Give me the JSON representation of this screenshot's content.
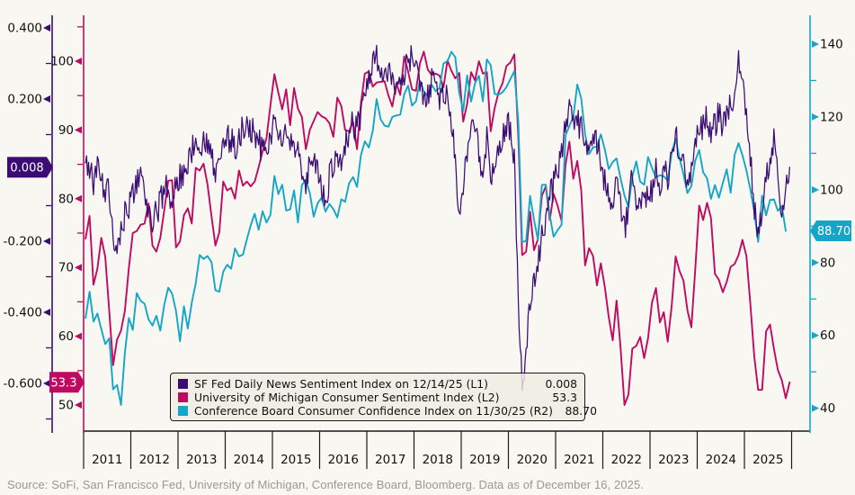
{
  "meta": {
    "source_line": "Source: SoFi, San Francisco Fed, University of Michigan, Conference Board, Bloomberg. Data as of December 16, 2025."
  },
  "colors": {
    "background": "#f9f7f1",
    "x_axis": "#1a1a1a",
    "sf_fed_purple": "#3a0c74",
    "michigan_magenta": "#be0a60",
    "conference_cyan": "#14a6c6",
    "badge_text": "#ffffff",
    "tick_label": "#111111"
  },
  "legend": {
    "items": [
      {
        "label": "SF Fed Daily News Sentiment Index on 12/14/25 (L1)",
        "value": "0.008",
        "swatch_color": "#3a0c74"
      },
      {
        "label": "University of Michigan Consumer Sentiment Index (L2)",
        "value": "53.3",
        "swatch_color": "#be0a60"
      },
      {
        "label": "Conference Board Consumer Confidence Index on 11/30/25 (R2)",
        "value": "88.70",
        "swatch_color": "#14a6c6"
      }
    ]
  },
  "axes": [
    {
      "id": "l1",
      "color": "#3a0c74",
      "ticks": [
        {
          "label": "0.400",
          "value": 0.4
        },
        {
          "label": "0.200",
          "value": 0.2
        },
        {
          "label": "-0.200",
          "value": -0.2
        },
        {
          "label": "-0.400",
          "value": -0.4
        },
        {
          "label": "-0.600",
          "value": -0.6
        }
      ],
      "minor": [
        0.3,
        0.1,
        -0.1,
        -0.3,
        -0.5,
        -0.7
      ],
      "badge": {
        "label": "0.008",
        "value": 0.008
      }
    },
    {
      "id": "l2",
      "color": "#be0a60",
      "ticks": [
        {
          "label": "100",
          "value": 100
        },
        {
          "label": "90",
          "value": 90
        },
        {
          "label": "80",
          "value": 80
        },
        {
          "label": "70",
          "value": 70
        },
        {
          "label": "60",
          "value": 60
        },
        {
          "label": "50",
          "value": 50
        }
      ],
      "minor": [
        105,
        95,
        85,
        75,
        65,
        55
      ],
      "badge": {
        "label": "53.3",
        "value": 53.3
      }
    },
    {
      "id": "r2",
      "color": "#14a6c6",
      "ticks": [
        {
          "label": "140",
          "value": 140
        },
        {
          "label": "120",
          "value": 120
        },
        {
          "label": "100",
          "value": 100
        },
        {
          "label": "80",
          "value": 80
        },
        {
          "label": "60",
          "value": 60
        },
        {
          "label": "40",
          "value": 40
        }
      ],
      "minor": [
        130,
        110,
        90,
        70,
        50
      ],
      "badge": {
        "label": "88.70",
        "value": 88.7
      }
    }
  ],
  "x_axis": {
    "years": [
      "2011",
      "2012",
      "2013",
      "2014",
      "2015",
      "2016",
      "2017",
      "2018",
      "2019",
      "2020",
      "2021",
      "2022",
      "2023",
      "2024",
      "2025"
    ]
  },
  "chart_data": {
    "type": "line",
    "x_unit": "month",
    "x_start": "2011-01",
    "x_end": "2025-12",
    "grid": false,
    "legend_position": "bottom-center-inside",
    "axis_ranges": {
      "L1": [
        -0.72,
        0.45
      ],
      "L2": [
        46,
        106
      ],
      "R2": [
        34,
        147
      ]
    },
    "series": [
      {
        "name": "SF Fed Daily News Sentiment Index on 12/14/25 (L1)",
        "axis": "L1",
        "color": "#3a0c74",
        "noise": 0.042,
        "width": 1.25,
        "last_value": 0.008,
        "values": [
          0.02,
          0.0,
          -0.03,
          0.01,
          -0.03,
          -0.06,
          -0.05,
          -0.18,
          -0.2,
          -0.16,
          -0.12,
          -0.1,
          -0.06,
          -0.03,
          -0.02,
          -0.06,
          -0.11,
          -0.14,
          -0.12,
          -0.09,
          -0.06,
          -0.05,
          -0.09,
          -0.05,
          -0.02,
          0.0,
          0.03,
          0.05,
          0.08,
          0.06,
          0.09,
          0.07,
          0.04,
          -0.03,
          0.04,
          0.08,
          0.1,
          0.08,
          0.06,
          0.1,
          0.12,
          0.13,
          0.12,
          0.1,
          0.09,
          0.04,
          0.08,
          0.1,
          0.12,
          0.1,
          0.08,
          0.1,
          0.08,
          0.05,
          0.04,
          -0.01,
          -0.03,
          0.02,
          0.03,
          0.01,
          -0.05,
          -0.09,
          -0.02,
          0.02,
          0.05,
          0.01,
          0.08,
          0.11,
          0.13,
          0.12,
          0.16,
          0.22,
          0.26,
          0.29,
          0.31,
          0.28,
          0.25,
          0.26,
          0.29,
          0.24,
          0.22,
          0.28,
          0.31,
          0.33,
          0.3,
          0.24,
          0.22,
          0.2,
          0.26,
          0.23,
          0.2,
          0.23,
          0.19,
          0.12,
          0.03,
          -0.12,
          -0.04,
          0.06,
          0.09,
          0.13,
          0.04,
          0.0,
          0.09,
          -0.05,
          0.03,
          0.06,
          0.11,
          0.13,
          0.11,
          0.04,
          -0.38,
          -0.62,
          -0.5,
          -0.38,
          -0.32,
          -0.26,
          -0.19,
          -0.13,
          -0.08,
          -0.04,
          -0.01,
          0.06,
          0.11,
          0.16,
          0.12,
          0.15,
          0.11,
          0.05,
          0.09,
          0.11,
          0.07,
          0.02,
          -0.03,
          -0.09,
          -0.13,
          -0.04,
          -0.11,
          -0.16,
          -0.11,
          -0.02,
          -0.09,
          -0.11,
          -0.05,
          -0.09,
          -0.06,
          0.01,
          -0.09,
          0.02,
          -0.03,
          0.05,
          0.09,
          0.05,
          0.01,
          -0.06,
          0.0,
          0.08,
          0.1,
          0.13,
          0.16,
          0.1,
          0.13,
          0.16,
          0.12,
          0.16,
          0.19,
          0.22,
          0.3,
          0.22,
          0.18,
          0.05,
          -0.1,
          -0.2,
          -0.1,
          -0.02,
          0.04,
          0.09,
          -0.02,
          -0.12,
          -0.06,
          0.008
        ]
      },
      {
        "name": "University of Michigan Consumer Sentiment Index (L2)",
        "axis": "L2",
        "color": "#be0a60",
        "noise": 0,
        "width": 1.9,
        "last_value": 53.3,
        "values": [
          74.2,
          77.5,
          67.5,
          69.8,
          74.3,
          71.5,
          63.7,
          55.8,
          59.5,
          60.8,
          63.7,
          69.9,
          75.0,
          75.3,
          76.2,
          76.4,
          79.3,
          73.2,
          72.3,
          74.3,
          78.3,
          82.6,
          82.7,
          72.9,
          73.8,
          77.6,
          78.6,
          76.4,
          84.5,
          84.1,
          85.1,
          82.1,
          77.5,
          73.2,
          75.1,
          82.5,
          81.2,
          81.6,
          80.0,
          84.1,
          81.9,
          82.5,
          81.8,
          82.5,
          84.6,
          86.9,
          88.8,
          93.6,
          98.1,
          95.4,
          93.0,
          95.9,
          90.7,
          96.1,
          93.1,
          91.9,
          87.2,
          90.0,
          91.3,
          92.6,
          92.0,
          91.7,
          91.0,
          89.0,
          94.7,
          93.5,
          90.0,
          89.8,
          91.2,
          87.2,
          93.8,
          98.2,
          98.5,
          96.3,
          96.9,
          97.0,
          97.1,
          95.0,
          93.4,
          96.8,
          95.1,
          100.7,
          98.5,
          95.9,
          95.7,
          99.7,
          101.4,
          98.8,
          98.0,
          98.2,
          97.9,
          96.2,
          100.1,
          98.6,
          97.5,
          98.3,
          91.2,
          93.8,
          98.4,
          97.2,
          100.0,
          98.2,
          98.4,
          89.8,
          93.2,
          95.5,
          96.8,
          99.3,
          99.8,
          101.0,
          89.1,
          71.8,
          72.3,
          78.1,
          72.5,
          74.1,
          80.4,
          81.8,
          76.9,
          80.7,
          79.0,
          76.8,
          84.9,
          88.3,
          82.9,
          85.5,
          81.2,
          70.3,
          72.8,
          71.7,
          67.4,
          70.6,
          67.2,
          62.8,
          59.4,
          65.2,
          58.4,
          50.0,
          51.5,
          58.2,
          58.6,
          59.9,
          56.8,
          59.7,
          64.9,
          67.0,
          62.0,
          63.5,
          59.2,
          64.4,
          71.6,
          69.5,
          68.1,
          63.8,
          61.3,
          69.7,
          79.0,
          76.9,
          79.4,
          77.2,
          69.1,
          68.2,
          66.4,
          67.9,
          70.1,
          70.5,
          71.8,
          74.0,
          71.7,
          64.7,
          57.0,
          52.2,
          52.2,
          60.7,
          61.7,
          58.2,
          55.1,
          53.6,
          51.0,
          53.3
        ]
      },
      {
        "name": "Conference Board Consumer Confidence Index on 11/30/25 (R2)",
        "axis": "R2",
        "color": "#14a6c6",
        "noise": 0,
        "width": 1.9,
        "last_value": 88.7,
        "values": [
          64.8,
          72.0,
          63.8,
          66.0,
          61.7,
          57.6,
          59.2,
          45.2,
          46.4,
          40.9,
          55.2,
          64.8,
          61.5,
          71.6,
          69.5,
          68.7,
          64.4,
          62.7,
          65.4,
          61.3,
          68.4,
          73.1,
          71.5,
          66.7,
          58.4,
          68.0,
          61.9,
          69.0,
          74.3,
          82.1,
          81.0,
          81.8,
          80.2,
          72.4,
          72.0,
          77.5,
          79.4,
          78.3,
          83.9,
          81.7,
          82.2,
          86.4,
          90.3,
          93.4,
          89.0,
          94.1,
          91.0,
          93.1,
          103.8,
          98.8,
          101.4,
          94.3,
          94.6,
          99.8,
          91.0,
          101.3,
          102.6,
          99.1,
          92.6,
          96.3,
          97.8,
          94.0,
          96.1,
          94.7,
          92.4,
          97.4,
          96.7,
          101.8,
          103.5,
          100.8,
          109.4,
          113.3,
          111.6,
          116.1,
          124.9,
          119.4,
          117.6,
          117.3,
          120.0,
          120.4,
          120.6,
          126.2,
          128.6,
          123.1,
          124.3,
          130.0,
          127.0,
          125.6,
          128.8,
          127.1,
          127.9,
          134.7,
          135.3,
          137.9,
          136.4,
          126.6,
          121.7,
          131.4,
          124.2,
          129.2,
          131.3,
          124.3,
          135.8,
          134.2,
          126.3,
          126.1,
          126.8,
          128.2,
          130.4,
          132.6,
          118.8,
          85.7,
          85.9,
          98.3,
          91.7,
          86.3,
          101.3,
          101.4,
          92.9,
          87.1,
          88.9,
          90.4,
          114.9,
          117.5,
          120.0,
          128.9,
          125.1,
          115.2,
          109.8,
          111.6,
          111.9,
          115.2,
          111.1,
          105.7,
          107.6,
          108.6,
          103.2,
          98.4,
          95.3,
          103.6,
          107.8,
          102.2,
          101.4,
          109.0,
          106.0,
          103.4,
          104.0,
          103.7,
          102.5,
          110.1,
          114.0,
          108.7,
          104.3,
          99.1,
          101.0,
          108.0,
          110.9,
          104.8,
          103.1,
          97.5,
          101.3,
          97.8,
          101.9,
          105.6,
          99.2,
          109.6,
          112.8,
          109.5,
          105.3,
          100.1,
          93.9,
          85.7,
          98.4,
          93.0,
          97.2,
          97.4,
          94.2,
          95.5,
          88.7
        ]
      }
    ]
  }
}
